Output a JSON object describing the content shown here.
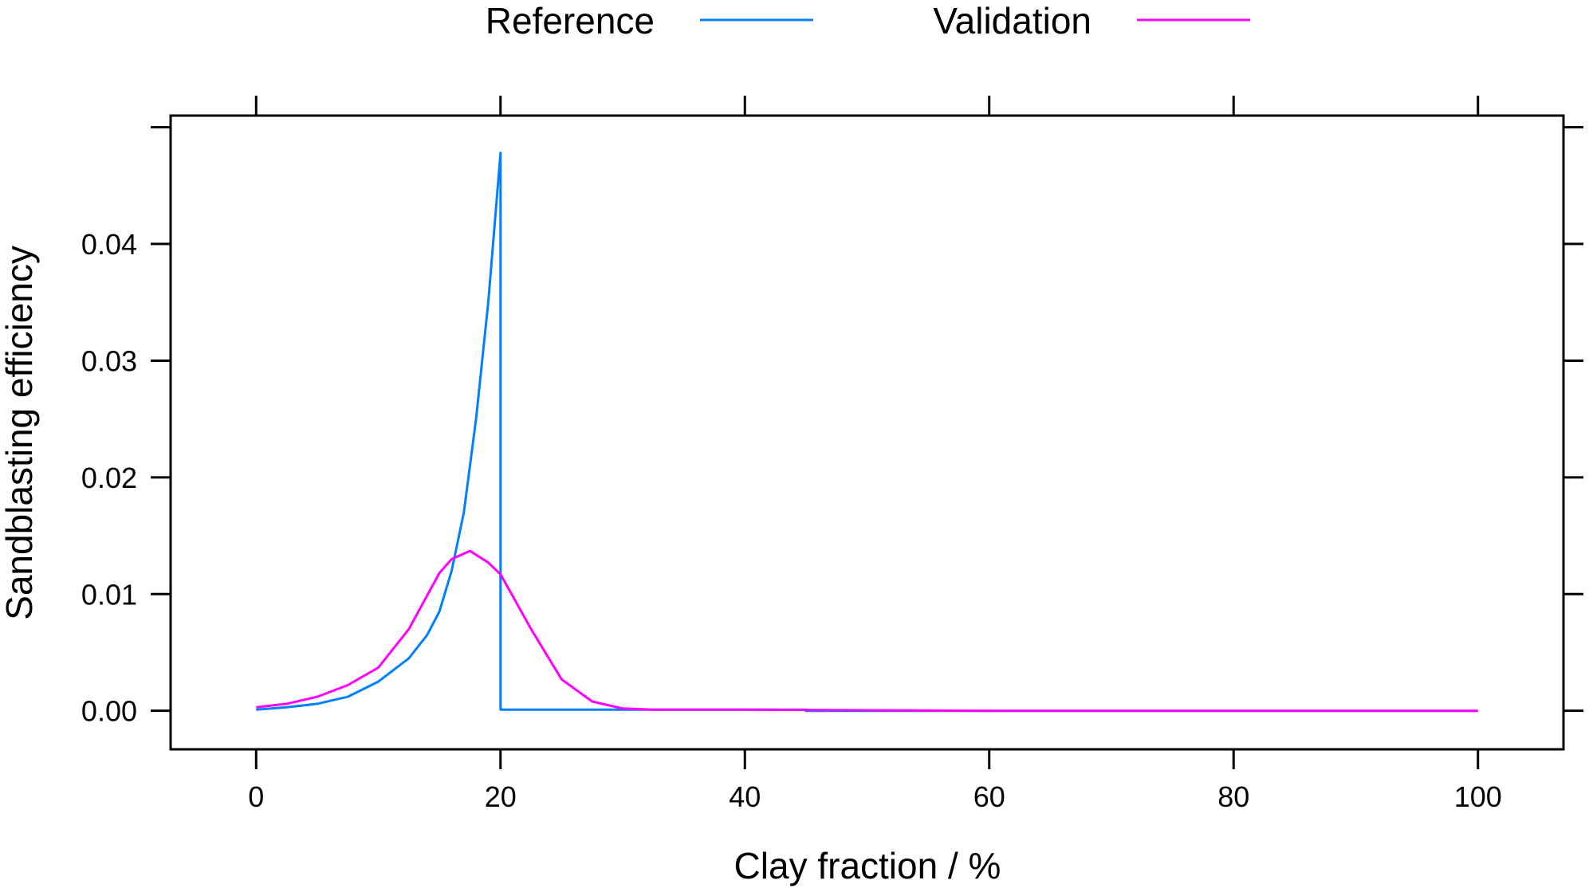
{
  "chart_data": {
    "type": "line",
    "xlabel": "Clay fraction / %",
    "ylabel": "Sandblasting efficiency",
    "xlim": [
      -7,
      107
    ],
    "ylim": [
      -0.0033,
      0.051
    ],
    "xticks": [
      0,
      20,
      40,
      60,
      80,
      100
    ],
    "xtick_labels": [
      "0",
      "20",
      "40",
      "60",
      "80",
      "100"
    ],
    "yticks": [
      0,
      0.01,
      0.02,
      0.03,
      0.04,
      0.05
    ],
    "ytick_labels": [
      "0.00",
      "0.01",
      "0.02",
      "0.03",
      "0.04",
      ""
    ],
    "grid": false,
    "legend_placement": "top",
    "series": [
      {
        "name": "Reference",
        "color": "#0080ff",
        "x": [
          0,
          2.5,
          5,
          7.5,
          10,
          12.5,
          14,
          15,
          16,
          17,
          18,
          19,
          20,
          20,
          45,
          45,
          100
        ],
        "y": [
          0.0001,
          0.0003,
          0.0006,
          0.0012,
          0.0025,
          0.0045,
          0.0065,
          0.0085,
          0.012,
          0.017,
          0.025,
          0.035,
          0.0478,
          0.0001,
          0.0001,
          0.0,
          0.0
        ]
      },
      {
        "name": "Validation",
        "color": "#ff00ff",
        "x": [
          0,
          2.5,
          5,
          7.5,
          10,
          12.5,
          15,
          16,
          17.5,
          19,
          20,
          22.5,
          25,
          27.5,
          30,
          32.5,
          40,
          60,
          100
        ],
        "y": [
          0.0003,
          0.0006,
          0.0012,
          0.0022,
          0.0037,
          0.007,
          0.0118,
          0.013,
          0.0137,
          0.0127,
          0.0117,
          0.007,
          0.0027,
          0.0008,
          0.0002,
          0.0001,
          0.0001,
          0.0,
          0.0
        ]
      }
    ]
  }
}
